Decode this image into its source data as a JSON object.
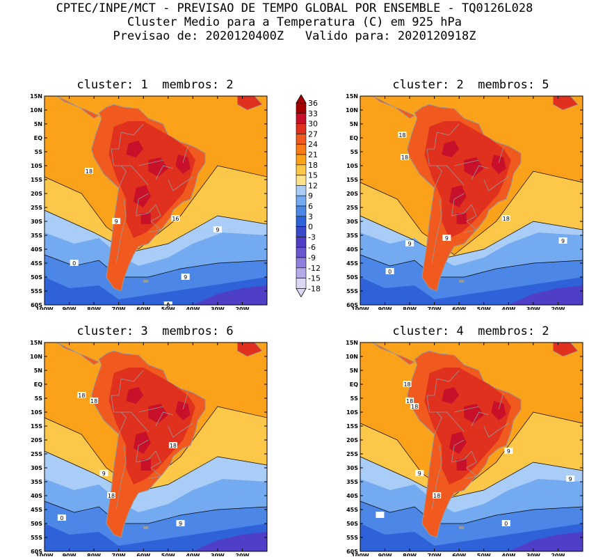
{
  "header": {
    "line1": "CPTEC/INPE/MCT - PREVISAO DE TEMPO GLOBAL POR ENSEMBLE - TQ0126L028",
    "line2": "Cluster Medio para a Temperatura (C) em 925 hPa",
    "line3": "Previsao de: 2020120400Z   Valido para: 2020120918Z"
  },
  "panels": [
    {
      "title": "cluster: 1  membros: 2",
      "labels": [
        "18",
        "16",
        "9",
        "9",
        "0",
        "9",
        "0"
      ]
    },
    {
      "title": "cluster: 2  membros: 5",
      "labels": [
        "18",
        "18",
        "18",
        "9",
        "9",
        "9",
        "0"
      ]
    },
    {
      "title": "cluster: 3  membros: 6",
      "labels": [
        "18",
        "18",
        "18",
        "9",
        "18",
        "9",
        "0"
      ]
    },
    {
      "title": "cluster: 4  membros: 2",
      "labels": [
        "18",
        "18",
        "18",
        "9",
        "9",
        "18",
        "9",
        "0"
      ]
    }
  ],
  "axes": {
    "lat_ticks": [
      "15N",
      "10N",
      "5N",
      "EQ",
      "5S",
      "10S",
      "15S",
      "20S",
      "25S",
      "30S",
      "35S",
      "40S",
      "45S",
      "50S",
      "55S",
      "60S"
    ],
    "lon_ticks": [
      "100W",
      "90W",
      "80W",
      "70W",
      "60W",
      "50W",
      "40W",
      "30W",
      "20W"
    ]
  },
  "colorbar": {
    "levels": [
      "36",
      "33",
      "30",
      "27",
      "24",
      "21",
      "18",
      "15",
      "12",
      "9",
      "6",
      "3",
      "0",
      "-3",
      "-6",
      "-9",
      "-12",
      "-15",
      "-18"
    ],
    "colors": [
      "#a50000",
      "#c8102a",
      "#e0301e",
      "#f05a1e",
      "#fa7a14",
      "#fba21a",
      "#fdc74a",
      "#ffe28a",
      "#a9cdf7",
      "#74aaf0",
      "#4c86e6",
      "#2f62d8",
      "#3949c9",
      "#4f3fc6",
      "#6a58d0",
      "#8e7fdc",
      "#b5abe8",
      "#dcd6f4"
    ]
  },
  "colors": {
    "ocean_warm": "#fba21a",
    "ocean_mid": "#fdc74a",
    "land_hot": "#f05a1e",
    "land_core": "#e0301e",
    "cool1": "#a9cdf7",
    "cool2": "#74aaf0",
    "cool3": "#4c86e6",
    "cold": "#2f62d8",
    "coldest": "#4f3fc6",
    "border": "#9a9a9a"
  }
}
